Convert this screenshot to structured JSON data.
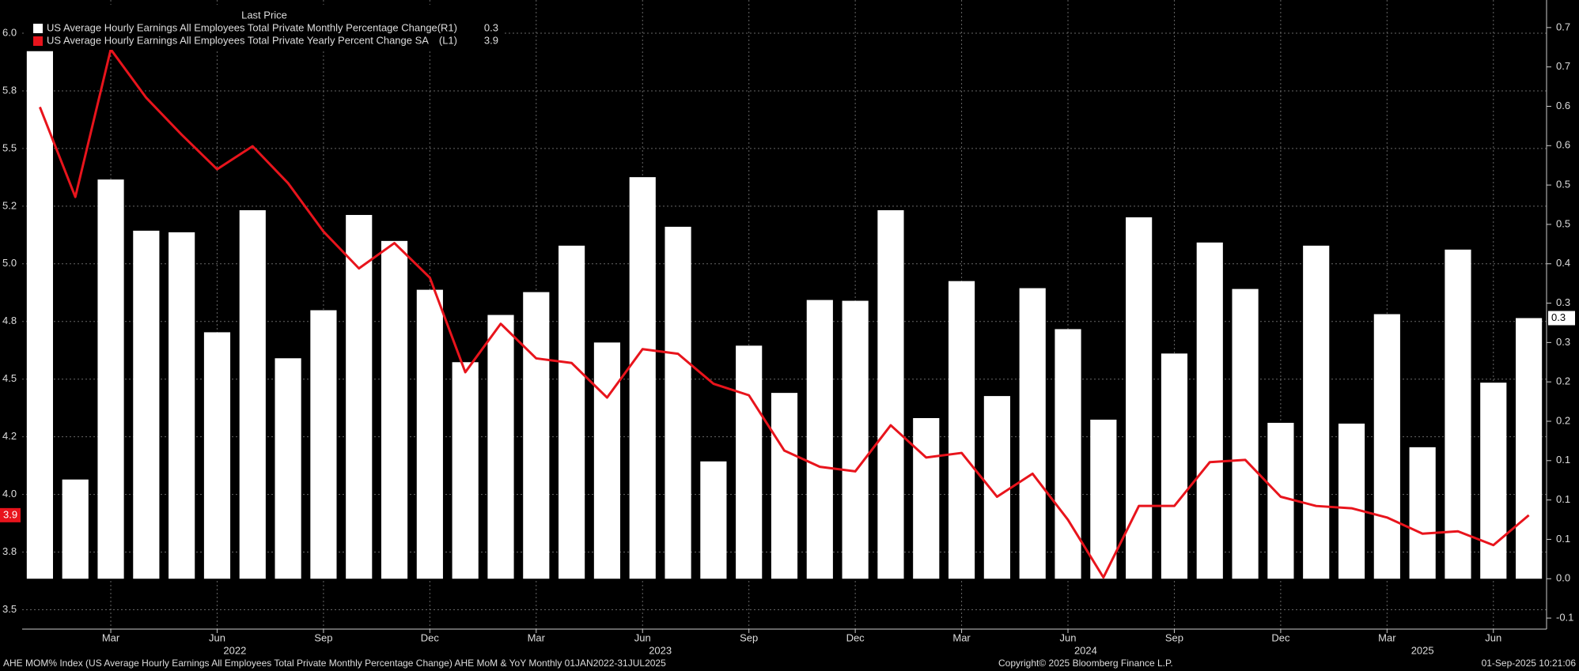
{
  "chart_data": {
    "type": "combo",
    "legend_title": "Last Price",
    "categories": [
      null,
      null,
      "Mar",
      null,
      null,
      "Jun",
      null,
      null,
      "Sep",
      null,
      null,
      "Dec",
      null,
      null,
      "Mar",
      null,
      null,
      "Jun",
      null,
      null,
      "Sep",
      null,
      null,
      "Dec",
      null,
      null,
      "Mar",
      null,
      null,
      "Jun",
      null,
      null,
      "Sep",
      null,
      null,
      "Dec",
      null,
      null,
      "Mar",
      null,
      null,
      "Jun",
      null
    ],
    "years": [
      "2022",
      "2023",
      "2024",
      "2025"
    ],
    "series": [
      {
        "name": "US Average Hourly Earnings All Employees Total Private Monthly Percentage Change",
        "axis_tag": "(R1)",
        "last_label": "0.3",
        "type": "bar",
        "axis": "y2",
        "color": "#ffffff",
        "values": [
          0.67,
          0.126,
          0.507,
          0.442,
          0.44,
          0.313,
          0.468,
          0.28,
          0.341,
          0.462,
          0.429,
          0.367,
          0.275,
          0.335,
          0.364,
          0.423,
          0.3,
          0.51,
          0.447,
          0.149,
          0.296,
          0.236,
          0.354,
          0.353,
          0.468,
          0.204,
          0.378,
          0.232,
          0.369,
          0.317,
          0.202,
          0.459,
          0.286,
          0.427,
          0.368,
          0.198,
          0.423,
          0.197,
          0.336,
          0.167,
          0.418,
          0.249,
          0.331
        ]
      },
      {
        "name": "US Average Hourly Earnings All Employees Total Private Yearly Percent Change SA",
        "axis_tag": "(L1)",
        "last_label": "3.9",
        "type": "line",
        "color": "#e8141c",
        "values": [
          5.68,
          5.29,
          5.93,
          5.72,
          5.56,
          5.41,
          5.51,
          5.35,
          5.14,
          4.98,
          5.09,
          4.94,
          4.53,
          4.74,
          4.59,
          4.57,
          4.42,
          4.63,
          4.61,
          4.48,
          4.43,
          4.19,
          4.12,
          4.1,
          4.3,
          4.16,
          4.18,
          3.99,
          4.09,
          3.89,
          3.64,
          3.95,
          3.95,
          4.14,
          4.15,
          3.99,
          3.95,
          3.94,
          3.9,
          3.83,
          3.84,
          3.78,
          3.91
        ]
      }
    ],
    "ylim": [
      3.416,
      6.144
    ],
    "yticks": [
      3.5,
      {
        "value": 3.75,
        "label": "3.8"
      },
      {
        "value": 4,
        "label": "4.0"
      },
      {
        "value": 4.25,
        "label": "4.2"
      },
      4.5,
      {
        "value": 4.75,
        "label": "4.8"
      },
      {
        "value": 5,
        "label": "5.0"
      },
      {
        "value": 5.25,
        "label": "5.2"
      },
      5.5,
      {
        "value": 5.75,
        "label": "5.8"
      },
      {
        "value": 6,
        "label": "6.0"
      }
    ],
    "y2lim": [
      -0.064,
      0.735
    ],
    "y2ticks": [
      {
        "value": -0.05,
        "label": "-0.1"
      },
      {
        "value": 0,
        "label": "0.0"
      },
      {
        "value": 0.05,
        "label": "0.1"
      },
      0.1,
      {
        "value": 0.15,
        "label": "0.1"
      },
      0.2,
      {
        "value": 0.25,
        "label": "0.2"
      },
      0.3,
      {
        "value": 0.35,
        "label": "0.3"
      },
      0.4,
      {
        "value": 0.45,
        "label": "0.5"
      },
      0.5,
      {
        "value": 0.55,
        "label": "0.6"
      },
      0.6,
      {
        "value": 0.65,
        "label": "0.7"
      },
      0.7
    ],
    "grid": true,
    "footer_left": "AHE MOM% Index (US Average Hourly Earnings All Employees Total Private Monthly Percentage Change) AHE MoM & YoY  Monthly 01JAN2022-31JUL2025",
    "footer_center": "Copyright© 2025 Bloomberg Finance L.P.",
    "footer_right": "01-Sep-2025 10:21:06"
  }
}
